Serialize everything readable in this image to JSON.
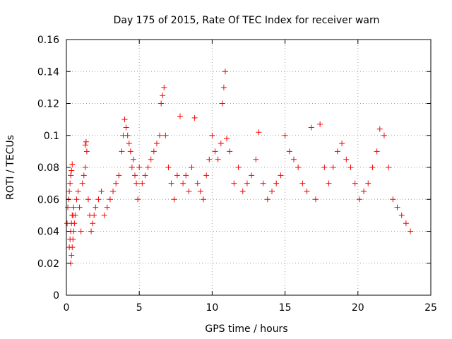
{
  "chart_data": {
    "type": "scatter",
    "title": "Day 175 of 2015, Rate Of TEC Index for receiver warn",
    "xlabel": "GPS time / hours",
    "ylabel": "ROTI / TECUs",
    "xlim": [
      0,
      25
    ],
    "ylim": [
      0,
      0.16
    ],
    "xticks": [
      0,
      5,
      10,
      15,
      20,
      25
    ],
    "yticks": [
      0,
      0.02,
      0.04,
      0.06,
      0.08,
      0.1,
      0.12,
      0.14,
      0.16
    ],
    "xtick_labels": [
      "0",
      "5",
      "10",
      "15",
      "20",
      "25"
    ],
    "ytick_labels": [
      "0",
      "0.02",
      "0.04",
      "0.06",
      "0.08",
      "0.1",
      "0.12",
      "0.14",
      "0.16"
    ],
    "grid": true,
    "marker": "+",
    "color": "#ff0000",
    "series": [
      {
        "x": [
          0.05,
          0.1,
          0.15,
          0.2,
          0.25,
          0.3,
          0.35,
          0.4,
          0.2,
          0.25,
          0.3,
          0.35,
          0.4,
          0.45,
          0.5,
          0.3,
          0.35,
          0.4,
          0.45,
          0.5,
          0.55,
          0.6,
          0.7,
          0.8,
          0.9,
          1.0,
          1.1,
          1.2,
          1.3,
          1.3,
          1.35,
          1.4,
          1.5,
          1.6,
          1.7,
          1.8,
          1.9,
          2.0,
          2.2,
          2.4,
          2.6,
          2.8,
          3.0,
          3.2,
          3.4,
          3.6,
          3.8,
          3.9,
          4.0,
          4.1,
          4.2,
          4.3,
          4.4,
          4.5,
          4.6,
          4.7,
          4.8,
          4.9,
          5.0,
          5.2,
          5.4,
          5.6,
          5.8,
          6.0,
          6.2,
          6.4,
          6.5,
          6.6,
          6.7,
          6.8,
          7.0,
          7.2,
          7.4,
          7.6,
          7.8,
          8.0,
          8.2,
          8.4,
          8.6,
          8.8,
          9.0,
          9.2,
          9.4,
          9.6,
          9.8,
          10.0,
          10.2,
          10.4,
          10.6,
          10.7,
          10.8,
          10.9,
          11.0,
          11.2,
          11.5,
          11.8,
          12.1,
          12.4,
          12.7,
          13.0,
          13.2,
          13.5,
          13.8,
          14.1,
          14.4,
          14.7,
          15.0,
          15.3,
          15.6,
          15.9,
          16.2,
          16.5,
          16.8,
          17.1,
          17.4,
          17.7,
          18.0,
          18.3,
          18.6,
          18.9,
          19.2,
          19.5,
          19.8,
          20.1,
          20.4,
          20.7,
          21.0,
          21.3,
          21.5,
          21.8,
          22.1,
          22.4,
          22.7,
          23.0,
          23.3,
          23.6
        ],
        "y": [
          0.045,
          0.055,
          0.06,
          0.065,
          0.07,
          0.075,
          0.078,
          0.082,
          0.03,
          0.035,
          0.04,
          0.045,
          0.05,
          0.05,
          0.055,
          0.02,
          0.025,
          0.03,
          0.035,
          0.04,
          0.045,
          0.05,
          0.06,
          0.065,
          0.055,
          0.04,
          0.07,
          0.075,
          0.08,
          0.094,
          0.096,
          0.09,
          0.06,
          0.05,
          0.04,
          0.045,
          0.05,
          0.055,
          0.06,
          0.065,
          0.05,
          0.055,
          0.06,
          0.065,
          0.07,
          0.075,
          0.09,
          0.1,
          0.11,
          0.105,
          0.1,
          0.095,
          0.09,
          0.08,
          0.085,
          0.075,
          0.07,
          0.06,
          0.08,
          0.07,
          0.075,
          0.08,
          0.085,
          0.09,
          0.095,
          0.1,
          0.12,
          0.125,
          0.13,
          0.1,
          0.08,
          0.07,
          0.06,
          0.075,
          0.112,
          0.07,
          0.075,
          0.065,
          0.08,
          0.111,
          0.07,
          0.065,
          0.06,
          0.075,
          0.085,
          0.1,
          0.09,
          0.085,
          0.095,
          0.12,
          0.13,
          0.14,
          0.098,
          0.09,
          0.07,
          0.08,
          0.065,
          0.07,
          0.075,
          0.085,
          0.102,
          0.07,
          0.06,
          0.065,
          0.07,
          0.075,
          0.1,
          0.09,
          0.085,
          0.08,
          0.07,
          0.065,
          0.105,
          0.06,
          0.107,
          0.08,
          0.07,
          0.08,
          0.09,
          0.095,
          0.085,
          0.08,
          0.07,
          0.06,
          0.065,
          0.07,
          0.08,
          0.09,
          0.104,
          0.1,
          0.08,
          0.06,
          0.055,
          0.05,
          0.045,
          0.04
        ]
      }
    ]
  }
}
